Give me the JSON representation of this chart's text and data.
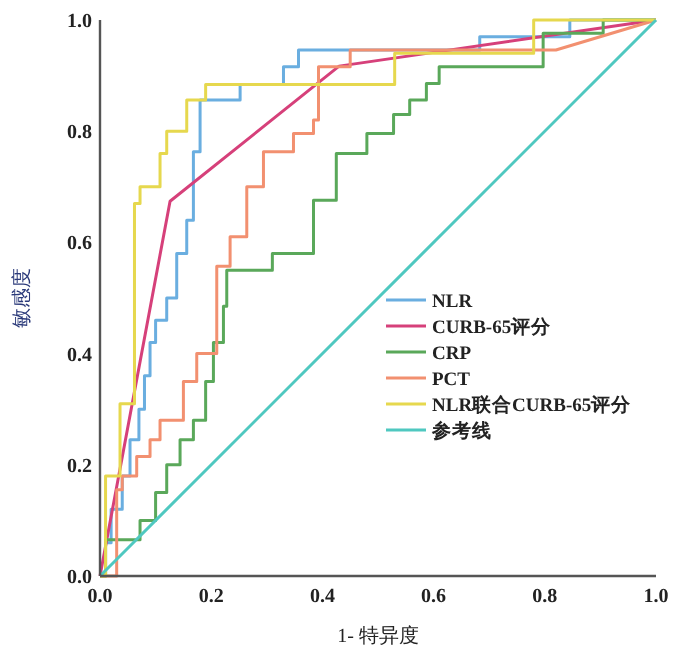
{
  "chart_data": {
    "type": "line",
    "xlabel": "1- 特异度",
    "ylabel": "敏感度",
    "xlim": [
      0,
      1
    ],
    "ylim": [
      0,
      1
    ],
    "xticks": [
      {
        "value": 0,
        "label": "0.0"
      },
      {
        "value": 0.2,
        "label": "0.2"
      },
      {
        "value": 0.4,
        "label": "0.4"
      },
      {
        "value": 0.6,
        "label": "0.6"
      },
      {
        "value": 0.8,
        "label": "0.8"
      },
      {
        "value": 1,
        "label": "1.0"
      }
    ],
    "yticks": [
      {
        "value": 0,
        "label": "0.0"
      },
      {
        "value": 0.2,
        "label": "0.2"
      },
      {
        "value": 0.4,
        "label": "0.4"
      },
      {
        "value": 0.6,
        "label": "0.6"
      },
      {
        "value": 0.8,
        "label": "0.8"
      },
      {
        "value": 1,
        "label": "1.0"
      }
    ],
    "legend": "bottom right",
    "grid": false,
    "series": [
      {
        "name": "NLR",
        "color": "#6aaee0",
        "x": [
          0,
          0.01,
          0.01,
          0.02,
          0.02,
          0.04,
          0.04,
          0.054,
          0.054,
          0.07,
          0.07,
          0.08,
          0.08,
          0.09,
          0.09,
          0.1,
          0.1,
          0.12,
          0.12,
          0.138,
          0.138,
          0.156,
          0.156,
          0.168,
          0.168,
          0.18,
          0.18,
          0.252,
          0.252,
          0.33,
          0.33,
          0.357,
          0.357,
          0.683,
          0.683,
          0.845,
          0.845,
          1
        ],
        "values": [
          0,
          0,
          0.06,
          0.06,
          0.12,
          0.12,
          0.18,
          0.18,
          0.245,
          0.245,
          0.3,
          0.3,
          0.36,
          0.36,
          0.42,
          0.42,
          0.46,
          0.46,
          0.5,
          0.5,
          0.58,
          0.58,
          0.64,
          0.64,
          0.763,
          0.763,
          0.856,
          0.856,
          0.884,
          0.884,
          0.916,
          0.916,
          0.946,
          0.946,
          0.97,
          0.97,
          1,
          1
        ]
      },
      {
        "name": "CURB-65评分",
        "color": "#d6407a",
        "x": [
          0,
          0.126,
          0.43,
          1
        ],
        "values": [
          0,
          0.674,
          0.917,
          1
        ]
      },
      {
        "name": "CRP",
        "color": "#5aa85a",
        "x": [
          0,
          0.01,
          0.01,
          0.072,
          0.072,
          0.1,
          0.1,
          0.12,
          0.12,
          0.144,
          0.144,
          0.168,
          0.168,
          0.19,
          0.19,
          0.204,
          0.204,
          0.222,
          0.222,
          0.228,
          0.228,
          0.31,
          0.31,
          0.384,
          0.384,
          0.425,
          0.425,
          0.48,
          0.48,
          0.528,
          0.528,
          0.557,
          0.557,
          0.587,
          0.587,
          0.61,
          0.61,
          0.797,
          0.797,
          0.905,
          0.905,
          1
        ],
        "values": [
          0,
          0,
          0.065,
          0.065,
          0.1,
          0.1,
          0.15,
          0.15,
          0.2,
          0.2,
          0.245,
          0.245,
          0.28,
          0.28,
          0.35,
          0.35,
          0.42,
          0.42,
          0.485,
          0.485,
          0.55,
          0.55,
          0.58,
          0.58,
          0.676,
          0.676,
          0.76,
          0.76,
          0.796,
          0.796,
          0.83,
          0.83,
          0.856,
          0.856,
          0.886,
          0.886,
          0.916,
          0.916,
          0.976,
          0.976,
          1,
          1
        ]
      },
      {
        "name": "PCT",
        "color": "#f29070",
        "x": [
          0,
          0.03,
          0.03,
          0.04,
          0.04,
          0.066,
          0.066,
          0.09,
          0.09,
          0.108,
          0.108,
          0.15,
          0.15,
          0.174,
          0.174,
          0.21,
          0.21,
          0.234,
          0.234,
          0.264,
          0.264,
          0.294,
          0.294,
          0.348,
          0.348,
          0.384,
          0.384,
          0.393,
          0.393,
          0.45,
          0.45,
          0.82,
          1
        ],
        "values": [
          0,
          0,
          0.155,
          0.155,
          0.18,
          0.18,
          0.215,
          0.215,
          0.245,
          0.245,
          0.28,
          0.28,
          0.35,
          0.35,
          0.4,
          0.4,
          0.557,
          0.557,
          0.61,
          0.61,
          0.7,
          0.7,
          0.763,
          0.763,
          0.796,
          0.796,
          0.82,
          0.82,
          0.916,
          0.916,
          0.946,
          0.946,
          1
        ]
      },
      {
        "name": "NLR联合CURB-65评分",
        "color": "#e6d84e",
        "x": [
          0,
          0.01,
          0.01,
          0.036,
          0.036,
          0.062,
          0.062,
          0.072,
          0.072,
          0.108,
          0.108,
          0.12,
          0.12,
          0.156,
          0.156,
          0.19,
          0.19,
          0.53,
          0.53,
          0.78,
          0.78,
          1
        ],
        "values": [
          0,
          0,
          0.18,
          0.18,
          0.31,
          0.31,
          0.67,
          0.67,
          0.7,
          0.7,
          0.76,
          0.76,
          0.8,
          0.8,
          0.856,
          0.856,
          0.884,
          0.884,
          0.94,
          0.94,
          1,
          1
        ]
      },
      {
        "name": "参考线",
        "color": "#4fc8c0",
        "x": [
          0,
          1
        ],
        "values": [
          0,
          1
        ]
      }
    ]
  }
}
